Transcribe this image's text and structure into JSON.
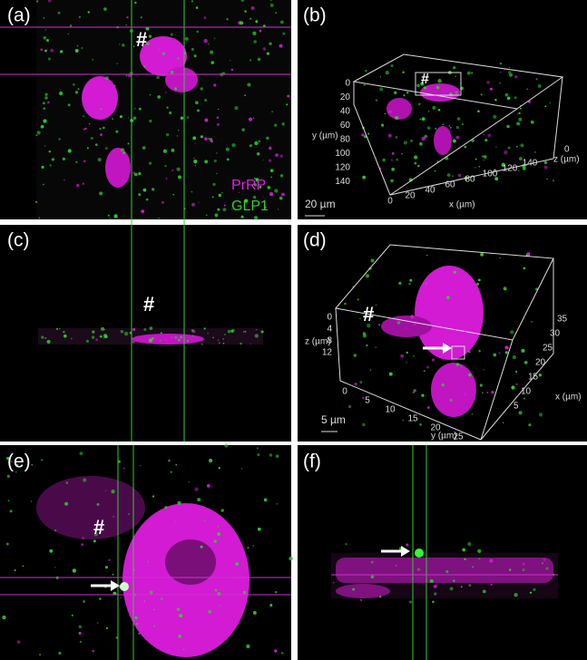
{
  "panels": [
    {
      "label": "(a)",
      "marker": "#",
      "legend": [
        "PrRP",
        "GLP1"
      ]
    },
    {
      "label": "(b)",
      "marker": "#",
      "y_label": "y (µm)",
      "y_ticks": [
        0,
        20,
        40,
        60,
        80,
        100,
        120,
        140
      ],
      "x_label": "x (µm)",
      "x_ticks": [
        0,
        20,
        40,
        60,
        80,
        100,
        120,
        140
      ],
      "z_label": "z (µm)",
      "z_ticks": [
        0
      ],
      "scale_bar": "20 µm"
    },
    {
      "label": "(c)",
      "marker": "#"
    },
    {
      "label": "(d)",
      "marker": "#",
      "z_label": "z (µm)",
      "z_ticks": [
        0,
        4,
        8,
        12
      ],
      "y_label": "y (µm)",
      "y_ticks": [
        0,
        5,
        10,
        15,
        20,
        25
      ],
      "x_label": "x (µm)",
      "x_ticks": [
        35,
        30,
        25,
        20,
        15,
        10,
        5
      ],
      "scale_bar": "5 µm"
    },
    {
      "label": "(e)",
      "marker": "#"
    },
    {
      "label": "(f)"
    }
  ]
}
